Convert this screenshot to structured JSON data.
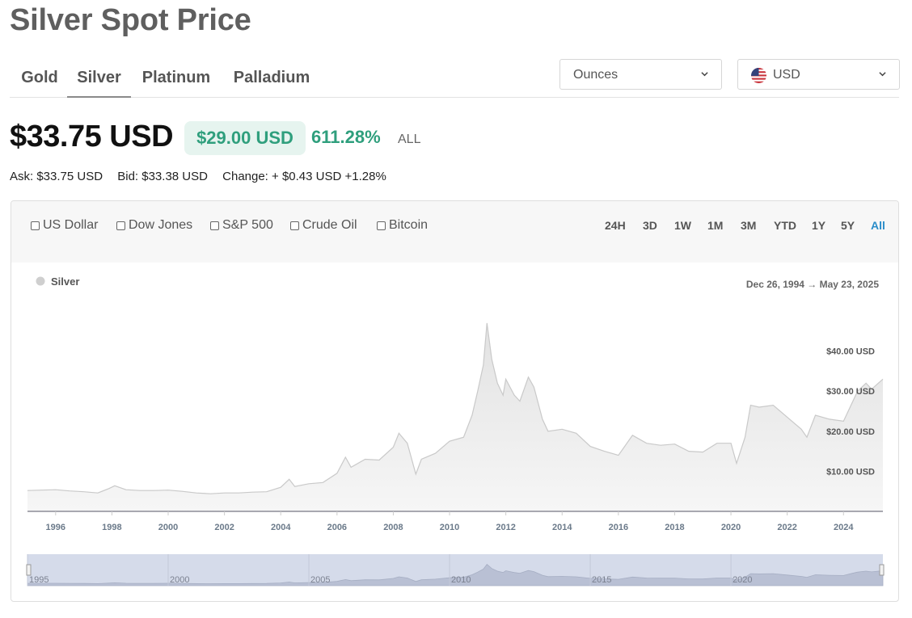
{
  "title": "Silver Spot Price",
  "metal_tabs": [
    "Gold",
    "Silver",
    "Platinum",
    "Palladium"
  ],
  "active_tab": "Silver",
  "unit_select": {
    "value": "Ounces"
  },
  "currency_select": {
    "value": "USD"
  },
  "price": {
    "current": "$33.75 USD",
    "change_value": "$29.00 USD",
    "change_percent": "611.28%",
    "period": "ALL"
  },
  "quotes": {
    "ask": "Ask: $33.75 USD",
    "bid": "Bid: $33.38 USD",
    "change": "Change: + $0.43 USD +1.28%"
  },
  "compare_options": [
    "US Dollar",
    "Dow Jones",
    "S&P 500",
    "Crude Oil",
    "Bitcoin"
  ],
  "time_ranges": [
    "24H",
    "3D",
    "1W",
    "1M",
    "3M",
    "YTD",
    "1Y",
    "5Y",
    "All"
  ],
  "active_range": "All",
  "colors": {
    "accent_green": "#2f9f7d",
    "active_range": "#2a8dc9",
    "series_fill": "#e6e6e6",
    "series_line": "#c9c9c9"
  },
  "chart_data": {
    "type": "area",
    "legend": {
      "entries": [
        "Silver"
      ],
      "placement": "top-left"
    },
    "date_range": {
      "start": "Dec 26, 1994",
      "arrow": "→",
      "end": "May 23, 2025"
    },
    "y_tick_labels": [
      "$10.00 USD",
      "$20.00 USD",
      "$30.00 USD",
      "$40.00 USD"
    ],
    "y_ticks": [
      10,
      20,
      30,
      40
    ],
    "ylim": [
      0,
      50
    ],
    "x_tick_labels": [
      "1996",
      "1998",
      "2000",
      "2002",
      "2004",
      "2006",
      "2008",
      "2010",
      "2012",
      "2014",
      "2016",
      "2018",
      "2020",
      "2022",
      "2024"
    ],
    "x_ticks": [
      1996,
      1998,
      2000,
      2002,
      2004,
      2006,
      2008,
      2010,
      2012,
      2014,
      2016,
      2018,
      2020,
      2022,
      2024
    ],
    "xlim": [
      1995.0,
      2025.4
    ],
    "grid": false,
    "series": [
      {
        "name": "Silver",
        "x": [
          1995.0,
          1995.5,
          1996.0,
          1996.5,
          1997.0,
          1997.5,
          1997.9,
          1998.1,
          1998.5,
          1999.0,
          1999.5,
          2000.0,
          2000.5,
          2001.0,
          2001.5,
          2002.0,
          2002.5,
          2003.0,
          2003.5,
          2004.0,
          2004.3,
          2004.5,
          2005.0,
          2005.5,
          2006.0,
          2006.3,
          2006.5,
          2007.0,
          2007.5,
          2008.0,
          2008.2,
          2008.5,
          2008.8,
          2009.0,
          2009.5,
          2010.0,
          2010.5,
          2010.8,
          2011.0,
          2011.2,
          2011.33,
          2011.5,
          2011.7,
          2011.9,
          2012.0,
          2012.3,
          2012.5,
          2012.8,
          2013.0,
          2013.3,
          2013.5,
          2014.0,
          2014.5,
          2015.0,
          2015.5,
          2016.0,
          2016.5,
          2017.0,
          2017.5,
          2018.0,
          2018.5,
          2019.0,
          2019.5,
          2020.0,
          2020.2,
          2020.5,
          2020.7,
          2021.0,
          2021.5,
          2022.0,
          2022.5,
          2022.7,
          2023.0,
          2023.5,
          2024.0,
          2024.3,
          2024.5,
          2024.8,
          2025.0,
          2025.4
        ],
        "values": [
          5.2,
          5.3,
          5.4,
          5.1,
          4.9,
          4.6,
          5.7,
          6.4,
          5.4,
          5.2,
          5.2,
          5.3,
          5.0,
          4.6,
          4.4,
          4.6,
          4.6,
          4.8,
          4.9,
          6.0,
          8.0,
          6.2,
          6.9,
          7.2,
          9.5,
          13.5,
          11.0,
          13.0,
          12.8,
          16.0,
          19.5,
          17.0,
          9.3,
          13.0,
          14.5,
          17.5,
          18.5,
          24.0,
          30.0,
          36.5,
          47.0,
          38.0,
          32.0,
          29.0,
          33.0,
          29.0,
          27.5,
          33.5,
          31.0,
          23.0,
          20.0,
          20.5,
          19.5,
          16.2,
          15.0,
          14.0,
          19.0,
          17.0,
          16.5,
          16.8,
          15.0,
          14.8,
          17.0,
          17.0,
          12.0,
          18.5,
          26.5,
          26.0,
          26.5,
          23.5,
          20.5,
          18.5,
          24.0,
          23.0,
          22.5,
          27.0,
          30.0,
          32.0,
          30.5,
          33.0
        ]
      }
    ],
    "navigator": {
      "tick_labels": [
        "1995",
        "2000",
        "2005",
        "2010",
        "2015",
        "2020"
      ],
      "ticks": [
        1995,
        2000,
        2005,
        2010,
        2015,
        2020
      ]
    }
  }
}
